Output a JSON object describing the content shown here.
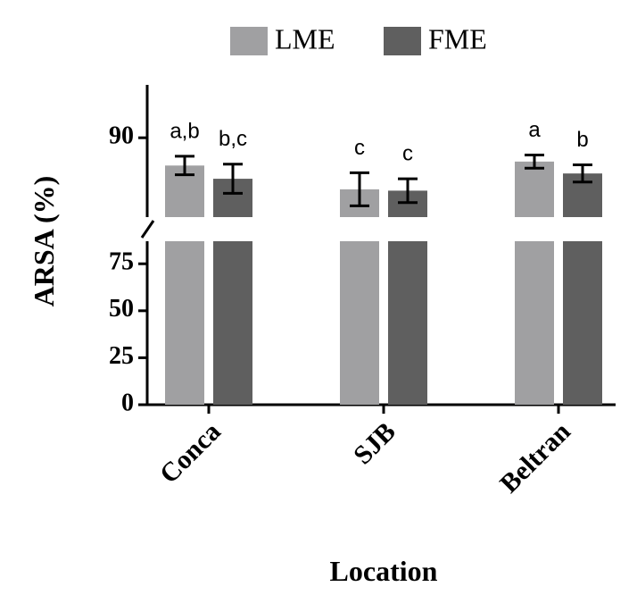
{
  "chart_data": {
    "type": "bar",
    "y_label": "ARSA (%)",
    "x_label": "Location",
    "categories": [
      "Conca",
      "SJB",
      "Beltran"
    ],
    "series": [
      {
        "name": "LME",
        "color": "#a0a0a2",
        "values": [
          87.9,
          86.1,
          88.2
        ],
        "errors": [
          0.7,
          1.25,
          0.5
        ],
        "annotations": [
          "a,b",
          "c",
          "a"
        ]
      },
      {
        "name": "FME",
        "color": "#5f5f5f",
        "values": [
          86.9,
          86.0,
          87.3
        ],
        "errors": [
          1.1,
          0.9,
          0.65
        ],
        "annotations": [
          "b,c",
          "c",
          "b"
        ]
      }
    ],
    "y_segments": [
      {
        "ylim": [
          0,
          87
        ]
      },
      {
        "ylim": [
          84,
          94
        ]
      }
    ],
    "yticks": [
      0,
      25,
      50,
      75,
      90
    ],
    "legend": "top"
  }
}
